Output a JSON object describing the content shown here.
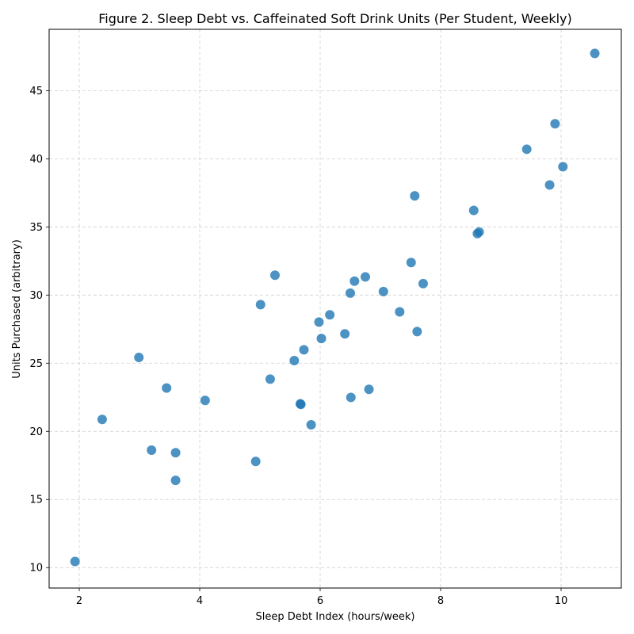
{
  "chart_data": {
    "type": "scatter",
    "title": "Figure 2. Sleep Debt vs. Caffeinated Soft Drink Units (Per Student, Weekly)",
    "xlabel": "Sleep Debt Index (hours/week)",
    "ylabel": "Units Purchased (arbitrary)",
    "xlim": [
      1.5,
      11.0
    ],
    "ylim": [
      8.5,
      49.5
    ],
    "xticks": [
      2,
      4,
      6,
      8,
      10
    ],
    "yticks": [
      10,
      15,
      20,
      25,
      30,
      35,
      40,
      45
    ],
    "grid": true,
    "point_color": "#1f77b4",
    "x": [
      1.93,
      2.38,
      2.99,
      3.2,
      3.45,
      3.6,
      3.6,
      4.09,
      4.93,
      5.01,
      5.17,
      5.25,
      5.57,
      5.67,
      5.68,
      5.73,
      5.85,
      5.98,
      6.02,
      6.16,
      6.41,
      6.5,
      6.51,
      6.57,
      6.75,
      6.81,
      7.05,
      7.32,
      7.51,
      7.57,
      7.61,
      7.71,
      8.55,
      8.61,
      8.64,
      9.43,
      9.81,
      9.9,
      10.03,
      10.56
    ],
    "y": [
      10.45,
      20.87,
      25.42,
      18.62,
      23.18,
      18.43,
      16.4,
      22.27,
      17.79,
      29.3,
      23.83,
      31.46,
      25.19,
      22.02,
      21.98,
      25.98,
      20.48,
      28.02,
      26.81,
      28.55,
      27.15,
      30.14,
      22.49,
      31.02,
      31.33,
      23.08,
      30.26,
      28.77,
      32.39,
      37.28,
      27.32,
      30.84,
      36.21,
      34.51,
      34.63,
      40.7,
      38.08,
      42.57,
      39.42,
      47.73
    ]
  }
}
